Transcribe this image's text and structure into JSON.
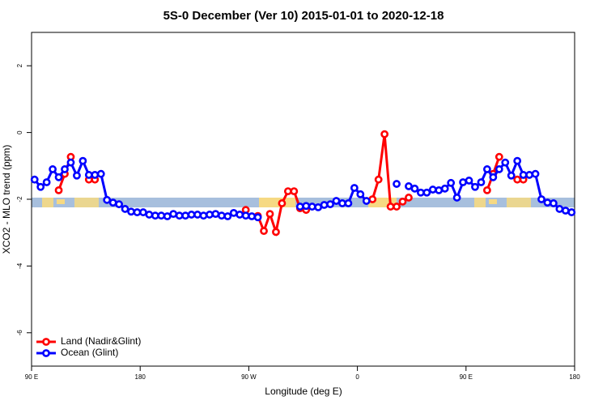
{
  "chart_data": {
    "type": "line",
    "title": "5S-0 December (Ver 10)   2015-01-01 to 2020-12-18",
    "x_label": "Longitude (deg E)",
    "y_label": "XCO2 - MLO trend (ppm)",
    "x": [
      92.5,
      97.5,
      102.5,
      107.5,
      112.5,
      117.5,
      122.5,
      127.5,
      132.5,
      137.5,
      142.5,
      147.5,
      152.5,
      157.5,
      162.5,
      167.5,
      172.5,
      177.5,
      182.5,
      187.5,
      192.5,
      197.5,
      202.5,
      207.5,
      212.5,
      217.5,
      222.5,
      227.5,
      232.5,
      237.5,
      242.5,
      247.5,
      252.5,
      257.5,
      262.5,
      267.5,
      272.5,
      277.5,
      282.5,
      287.5,
      292.5,
      297.5,
      302.5,
      307.5,
      312.5,
      317.5,
      322.5,
      327.5,
      332.5,
      337.5,
      342.5,
      347.5,
      352.5,
      357.5,
      362.5,
      367.5,
      372.5,
      377.5,
      382.5,
      387.5,
      392.5,
      397.5,
      402.5,
      407.5,
      412.5,
      417.5,
      422.5,
      427.5,
      432.5,
      437.5,
      442.5,
      447.5,
      452.5,
      457.5,
      462.5,
      467.5,
      472.5,
      477.5,
      482.5,
      487.5,
      492.5,
      497.5,
      502.5,
      507.5,
      512.5,
      517.5,
      522.5,
      527.5,
      532.5,
      537.5
    ],
    "series": [
      {
        "name": "Land (Nadir&Glint)",
        "color": "#ff0000",
        "values": [
          null,
          null,
          null,
          null,
          -1.73,
          -1.24,
          -0.73,
          null,
          null,
          -1.41,
          -1.41,
          null,
          null,
          null,
          null,
          null,
          null,
          null,
          null,
          null,
          null,
          null,
          null,
          null,
          null,
          null,
          null,
          null,
          null,
          null,
          null,
          null,
          null,
          null,
          null,
          -2.32,
          null,
          -2.5,
          -2.95,
          -2.44,
          -2.98,
          -2.12,
          -1.76,
          -1.76,
          -2.27,
          -2.32,
          null,
          null,
          null,
          null,
          null,
          null,
          null,
          null,
          null,
          null,
          -2.0,
          -1.41,
          -0.05,
          -2.22,
          -2.22,
          -2.07,
          -1.95,
          null,
          null,
          null,
          null,
          null,
          null,
          null,
          null,
          null,
          null,
          null,
          null,
          -1.73,
          -1.24,
          -0.73,
          null,
          null,
          -1.41,
          -1.41,
          null,
          null,
          null,
          null,
          null,
          null,
          null,
          null
        ]
      },
      {
        "name": "Ocean (Glint)",
        "color": "#0000ff",
        "values": [
          -1.41,
          -1.63,
          -1.49,
          -1.1,
          -1.34,
          -1.1,
          -0.9,
          -1.29,
          -0.85,
          -1.27,
          -1.27,
          -1.24,
          -2.02,
          -2.1,
          -2.15,
          -2.29,
          -2.37,
          -2.39,
          -2.39,
          -2.46,
          -2.49,
          -2.49,
          -2.51,
          -2.44,
          -2.49,
          -2.49,
          -2.46,
          -2.46,
          -2.49,
          -2.46,
          -2.44,
          -2.49,
          -2.51,
          -2.41,
          -2.46,
          -2.49,
          -2.51,
          -2.54,
          null,
          null,
          null,
          null,
          null,
          null,
          -2.22,
          -2.2,
          -2.22,
          -2.24,
          -2.17,
          -2.15,
          -2.05,
          -2.12,
          -2.12,
          -1.66,
          -1.85,
          -2.05,
          null,
          null,
          null,
          null,
          -1.54,
          null,
          -1.61,
          -1.68,
          -1.8,
          -1.8,
          -1.71,
          -1.73,
          -1.68,
          -1.51,
          -1.95,
          -1.49,
          -1.44,
          -1.63,
          -1.49,
          -1.1,
          -1.34,
          -1.1,
          -0.9,
          -1.29,
          -0.85,
          -1.27,
          -1.27,
          -1.24,
          -2.0,
          -2.1,
          -2.12,
          -2.29,
          -2.34,
          -2.39
        ]
      }
    ],
    "xlim": [
      90,
      540
    ],
    "xticks": [
      {
        "value": 90,
        "label": "90 E"
      },
      180,
      {
        "value": 270,
        "label": "90 W"
      },
      {
        "value": 360,
        "label": "0"
      },
      {
        "value": 450,
        "label": "90 E"
      },
      {
        "value": 540,
        "label": "180"
      }
    ],
    "ylim": [
      -7,
      3
    ],
    "yticks": [
      2,
      0,
      -2,
      -4,
      -6
    ],
    "legend": "bottom-left"
  }
}
